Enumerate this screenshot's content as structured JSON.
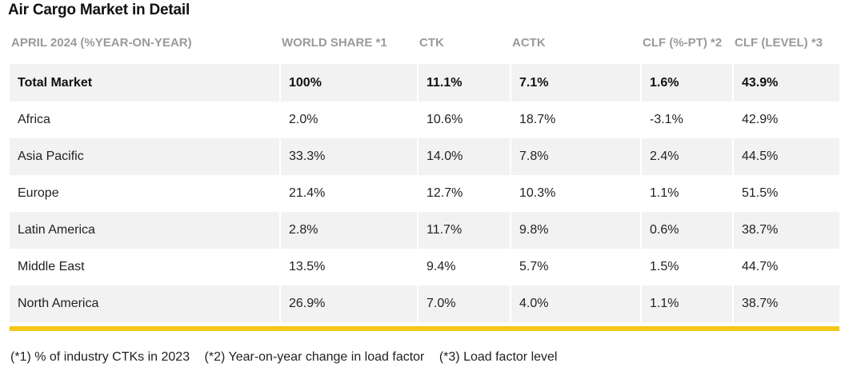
{
  "title": "Air Cargo Market in Detail",
  "headers": [
    "APRIL 2024 (%YEAR-ON-YEAR)",
    "WORLD SHARE *1",
    "CTK",
    "ACTK",
    "CLF (%-PT) *2",
    "CLF (LEVEL) *3"
  ],
  "total": [
    "Total Market",
    "100%",
    "11.1%",
    "7.1%",
    "1.6%",
    "43.9%"
  ],
  "rows": [
    [
      "Africa",
      "2.0%",
      "10.6%",
      "18.7%",
      "-3.1%",
      "42.9%"
    ],
    [
      "Asia Pacific",
      "33.3%",
      "14.0%",
      "7.8%",
      "2.4%",
      "44.5%"
    ],
    [
      "Europe",
      "21.4%",
      "12.7%",
      "10.3%",
      "1.1%",
      "51.5%"
    ],
    [
      "Latin America",
      "2.8%",
      "11.7%",
      "9.8%",
      "0.6%",
      "38.7%"
    ],
    [
      "Middle East",
      "13.5%",
      "9.4%",
      "5.7%",
      "1.5%",
      "44.7%"
    ],
    [
      "North America",
      "26.9%",
      "7.0%",
      "4.0%",
      "1.1%",
      "38.7%"
    ]
  ],
  "notes": [
    "(*1) % of industry CTKs in 2023",
    "(*2) Year-on-year change in load factor",
    "(*3) Load factor level"
  ],
  "colors": {
    "accent_bar": "#f5c518",
    "row_shade": "#f2f2f2",
    "header_text": "#9a9a9a"
  }
}
